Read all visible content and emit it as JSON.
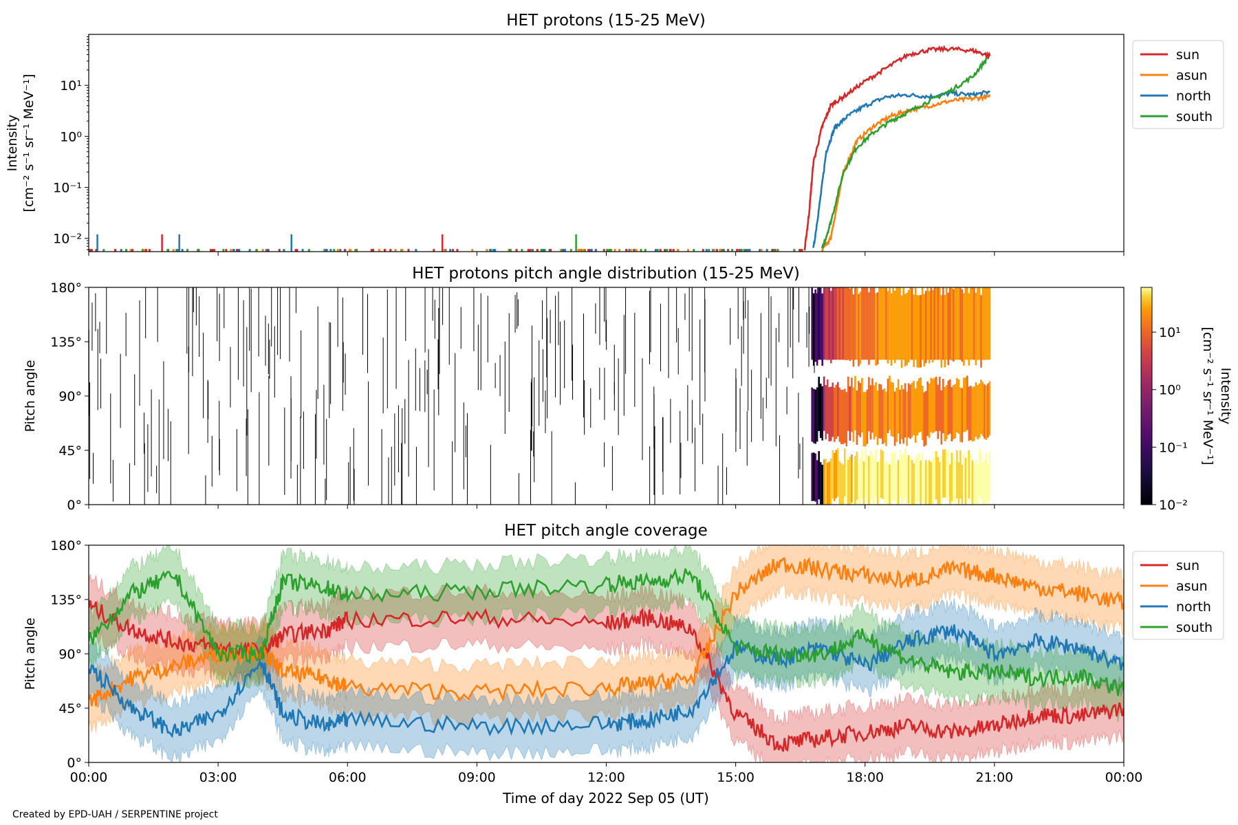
{
  "figure": {
    "credit": "Created by EPD-UAH / SERPENTINE project",
    "colors": {
      "sun": "#d62728",
      "asun": "#ff7f0e",
      "north": "#1f77b4",
      "south": "#2ca02c"
    }
  },
  "chart_data": [
    {
      "type": "line",
      "title": "HET protons (15-25 MeV)",
      "ylabel_line1": "Intensity",
      "ylabel_line2": "[cm⁻² s⁻¹ sr⁻¹ MeV⁻¹]",
      "yscale": "log",
      "ylim": [
        0.0055,
        100
      ],
      "yticks": [
        {
          "value": 0.01,
          "label": "10⁻²"
        },
        {
          "value": 0.1,
          "label": "10⁻¹"
        },
        {
          "value": 1,
          "label": "10⁰"
        },
        {
          "value": 10,
          "label": "10¹"
        }
      ],
      "xlim_hours": [
        0,
        24
      ],
      "legend": {
        "placement": "outside-right",
        "entries": [
          "sun",
          "asun",
          "north",
          "south"
        ]
      },
      "series": [
        {
          "name": "sun",
          "points": [
            [
              16.6,
              0.006
            ],
            [
              16.7,
              0.03
            ],
            [
              16.8,
              0.3
            ],
            [
              17.0,
              1.5
            ],
            [
              17.2,
              4
            ],
            [
              17.5,
              6
            ],
            [
              18.0,
              12
            ],
            [
              18.5,
              22
            ],
            [
              19.0,
              40
            ],
            [
              19.5,
              50
            ],
            [
              20.0,
              52
            ],
            [
              20.5,
              48
            ],
            [
              20.9,
              38
            ]
          ]
        },
        {
          "name": "asun",
          "points": [
            [
              17.0,
              0.006
            ],
            [
              17.2,
              0.01
            ],
            [
              17.5,
              0.2
            ],
            [
              17.8,
              0.8
            ],
            [
              18.2,
              1.6
            ],
            [
              18.6,
              2.5
            ],
            [
              19.0,
              3.2
            ],
            [
              19.5,
              4
            ],
            [
              20.0,
              5
            ],
            [
              20.5,
              5.5
            ],
            [
              20.9,
              6
            ]
          ]
        },
        {
          "name": "north",
          "points": [
            [
              16.8,
              0.006
            ],
            [
              16.95,
              0.05
            ],
            [
              17.1,
              0.5
            ],
            [
              17.3,
              1.5
            ],
            [
              17.6,
              2.5
            ],
            [
              18.0,
              4
            ],
            [
              18.5,
              6
            ],
            [
              19.0,
              6.5
            ],
            [
              19.5,
              6
            ],
            [
              20.0,
              7
            ],
            [
              20.5,
              6.5
            ],
            [
              20.9,
              7.5
            ]
          ]
        },
        {
          "name": "south",
          "points": [
            [
              17.0,
              0.006
            ],
            [
              17.2,
              0.02
            ],
            [
              17.5,
              0.2
            ],
            [
              17.8,
              0.6
            ],
            [
              18.2,
              1.2
            ],
            [
              18.6,
              2
            ],
            [
              19.0,
              3
            ],
            [
              19.5,
              5
            ],
            [
              20.0,
              8
            ],
            [
              20.5,
              15
            ],
            [
              20.9,
              40
            ]
          ]
        }
      ],
      "spikes": [
        {
          "x": 0.2,
          "y": 0.012,
          "name": "north"
        },
        {
          "x": 1.7,
          "y": 0.012,
          "name": "sun"
        },
        {
          "x": 2.1,
          "y": 0.012,
          "name": "north"
        },
        {
          "x": 4.7,
          "y": 0.012,
          "name": "north"
        },
        {
          "x": 8.2,
          "y": 0.012,
          "name": "sun"
        },
        {
          "x": 11.3,
          "y": 0.012,
          "name": "south"
        }
      ]
    },
    {
      "type": "heatmap",
      "title": "HET protons pitch angle distribution (15-25 MeV)",
      "ylabel": "Pitch angle",
      "ylim": [
        0,
        180
      ],
      "yticks": [
        {
          "value": 0,
          "label": "0°"
        },
        {
          "value": 45,
          "label": "45°"
        },
        {
          "value": 90,
          "label": "90°"
        },
        {
          "value": 135,
          "label": "135°"
        },
        {
          "value": 180,
          "label": "180°"
        }
      ],
      "xlim_hours": [
        0,
        24
      ],
      "colorbar": {
        "scale": "log",
        "range": [
          0.01,
          60
        ],
        "label_line1": "Intensity",
        "label_line2": "[cm⁻² s⁻¹ sr⁻¹ MeV⁻¹]",
        "ticks": [
          {
            "value": 0.01,
            "label": "10⁻²"
          },
          {
            "value": 0.1,
            "label": "10⁻¹"
          },
          {
            "value": 1,
            "label": "10⁰"
          },
          {
            "value": 10,
            "label": "10¹"
          }
        ]
      },
      "event_start_hours": 16.9,
      "event_end_hours": 20.9
    },
    {
      "type": "line",
      "title": "HET pitch angle coverage",
      "ylabel": "Pitch angle",
      "xlabel": "Time of day 2022 Sep 05 (UT)",
      "ylim": [
        0,
        180
      ],
      "yticks": [
        {
          "value": 0,
          "label": "0°"
        },
        {
          "value": 45,
          "label": "45°"
        },
        {
          "value": 90,
          "label": "90°"
        },
        {
          "value": 135,
          "label": "135°"
        },
        {
          "value": 180,
          "label": "180°"
        }
      ],
      "xlim_hours": [
        0,
        24
      ],
      "xticks": [
        {
          "value": 0,
          "label": "00:00"
        },
        {
          "value": 3,
          "label": "03:00"
        },
        {
          "value": 6,
          "label": "06:00"
        },
        {
          "value": 9,
          "label": "09:00"
        },
        {
          "value": 12,
          "label": "12:00"
        },
        {
          "value": 15,
          "label": "15:00"
        },
        {
          "value": 18,
          "label": "18:00"
        },
        {
          "value": 21,
          "label": "21:00"
        },
        {
          "value": 24,
          "label": "00:00"
        }
      ],
      "legend": {
        "placement": "outside-right",
        "entries": [
          "sun",
          "asun",
          "north",
          "south"
        ]
      },
      "band_halfwidth_deg": 22,
      "series": [
        {
          "name": "sun",
          "points": [
            [
              0,
              130
            ],
            [
              1,
              110
            ],
            [
              2,
              100
            ],
            [
              3,
              95
            ],
            [
              4,
              92
            ],
            [
              4.5,
              105
            ],
            [
              5.5,
              110
            ],
            [
              6,
              118
            ],
            [
              9,
              120
            ],
            [
              12,
              115
            ],
            [
              13,
              120
            ],
            [
              14,
              110
            ],
            [
              15,
              40
            ],
            [
              16,
              15
            ],
            [
              17,
              20
            ],
            [
              18,
              25
            ],
            [
              19,
              30
            ],
            [
              20,
              25
            ],
            [
              21,
              30
            ],
            [
              22,
              40
            ],
            [
              23,
              38
            ],
            [
              24,
              45
            ]
          ]
        },
        {
          "name": "asun",
          "points": [
            [
              0,
              50
            ],
            [
              1,
              70
            ],
            [
              2,
              80
            ],
            [
              3,
              90
            ],
            [
              4,
              92
            ],
            [
              4.5,
              75
            ],
            [
              5.5,
              70
            ],
            [
              6,
              62
            ],
            [
              9,
              58
            ],
            [
              12,
              62
            ],
            [
              13,
              65
            ],
            [
              14,
              70
            ],
            [
              15,
              140
            ],
            [
              16,
              165
            ],
            [
              17,
              160
            ],
            [
              18,
              155
            ],
            [
              19,
              150
            ],
            [
              20,
              160
            ],
            [
              21,
              155
            ],
            [
              22,
              145
            ],
            [
              23,
              140
            ],
            [
              24,
              132
            ]
          ]
        },
        {
          "name": "north",
          "points": [
            [
              0,
              80
            ],
            [
              1,
              45
            ],
            [
              2,
              25
            ],
            [
              3,
              40
            ],
            [
              4,
              85
            ],
            [
              4.5,
              40
            ],
            [
              5.5,
              30
            ],
            [
              6,
              35
            ],
            [
              9,
              30
            ],
            [
              12,
              32
            ],
            [
              13,
              35
            ],
            [
              14,
              45
            ],
            [
              15,
              95
            ],
            [
              16,
              85
            ],
            [
              17,
              95
            ],
            [
              18,
              80
            ],
            [
              19,
              100
            ],
            [
              20,
              110
            ],
            [
              21,
              90
            ],
            [
              22,
              100
            ],
            [
              23,
              95
            ],
            [
              24,
              80
            ]
          ]
        },
        {
          "name": "south",
          "points": [
            [
              0,
              100
            ],
            [
              1,
              140
            ],
            [
              2,
              155
            ],
            [
              3,
              90
            ],
            [
              4,
              90
            ],
            [
              4.5,
              150
            ],
            [
              5.5,
              145
            ],
            [
              6,
              138
            ],
            [
              9,
              142
            ],
            [
              12,
              148
            ],
            [
              13,
              150
            ],
            [
              14,
              155
            ],
            [
              15,
              95
            ],
            [
              16,
              90
            ],
            [
              17,
              90
            ],
            [
              18,
              105
            ],
            [
              19,
              85
            ],
            [
              20,
              75
            ],
            [
              21,
              75
            ],
            [
              22,
              70
            ],
            [
              23,
              72
            ],
            [
              24,
              60
            ]
          ]
        }
      ]
    }
  ]
}
